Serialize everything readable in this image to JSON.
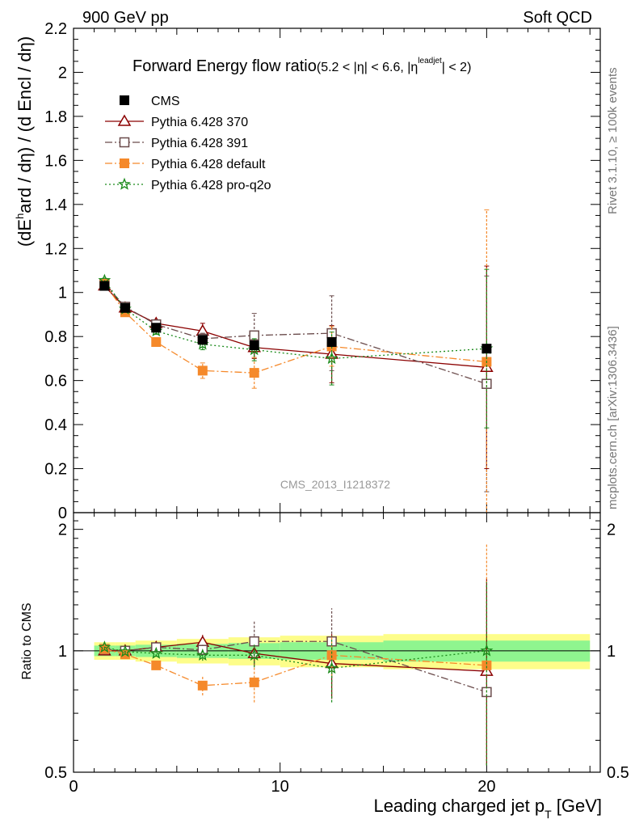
{
  "header": {
    "left": "900 GeV pp",
    "right": "Soft QCD"
  },
  "side_labels": {
    "rivet": "Rivet 3.1.10, ≥ 100k events",
    "mcplots": "mcplots.cern.ch [arXiv:1306.3436]"
  },
  "watermark": "CMS_2013_I1218372",
  "chart_data": {
    "type": "scatter",
    "title": "Forward Energy flow ratio",
    "title_cut": "(5.2 < |η| < 6.6, |η",
    "title_cut_sup": "leadjet",
    "title_cut_end": "| < 2)",
    "ylabel_pre": "(dE",
    "ylabel_sup": "h",
    "ylabel_post": "ard / dη) / (d Encl / dη)",
    "xlabel": "Leading charged jet p",
    "xlabel_sub": "T",
    "xlabel_unit": " [GeV]",
    "ratio_ylabel": "Ratio to CMS",
    "xlim": [
      0,
      25.5
    ],
    "ylim": [
      0,
      2.2
    ],
    "ratio_ylim": [
      0.5,
      2.2
    ],
    "ratio_log": true,
    "x_ticks": [
      "0",
      "10",
      "20"
    ],
    "x_tick_values": [
      0,
      10,
      20
    ],
    "y_ticks": [
      "0",
      "0.2",
      "0.4",
      "0.6",
      "0.8",
      "1",
      "1.2",
      "1.4",
      "1.6",
      "1.8",
      "2",
      "2.2"
    ],
    "y_tick_values": [
      0,
      0.2,
      0.4,
      0.6,
      0.8,
      1.0,
      1.2,
      1.4,
      1.6,
      1.8,
      2.0,
      2.2
    ],
    "ratio_ticks": [
      "0.5",
      "1",
      "2"
    ],
    "ratio_tick_values": [
      0.5,
      1,
      2
    ],
    "legend_position": "top-left",
    "band_x": [
      1,
      2,
      3,
      5,
      7.5,
      10,
      15,
      25
    ],
    "band_inner": [
      0.03,
      0.03,
      0.035,
      0.04,
      0.045,
      0.05,
      0.06
    ],
    "band_outer": [
      0.05,
      0.05,
      0.06,
      0.07,
      0.08,
      0.09,
      0.1
    ],
    "series": [
      {
        "name": "CMS",
        "color": "#000000",
        "marker": "square-filled",
        "dash": "",
        "x": [
          1.5,
          2.5,
          4.0,
          6.25,
          8.75,
          12.5,
          20.0
        ],
        "y": [
          1.03,
          0.93,
          0.84,
          0.785,
          0.76,
          0.775,
          0.745
        ],
        "err": [
          0.0,
          0.0,
          0.0,
          0.0,
          0.0,
          0.0,
          0.0
        ],
        "ratio": [
          1,
          1,
          1,
          1,
          1,
          1,
          1
        ],
        "ratio_err": [
          0,
          0,
          0,
          0,
          0,
          0,
          0
        ]
      },
      {
        "name": "Pythia 6.428 370",
        "color": "#8b0000",
        "marker": "triangle-open",
        "dash": "",
        "x": [
          1.5,
          2.5,
          4.0,
          6.25,
          8.75,
          12.5,
          20.0
        ],
        "y": [
          1.03,
          0.93,
          0.86,
          0.825,
          0.75,
          0.72,
          0.66
        ],
        "err": [
          0.01,
          0.015,
          0.015,
          0.035,
          0.05,
          0.13,
          0.46
        ],
        "ratio": [
          1.0,
          1.0,
          1.02,
          1.05,
          0.985,
          0.93,
          0.89
        ],
        "ratio_err": [
          0.01,
          0.015,
          0.018,
          0.045,
          0.07,
          0.17,
          0.62
        ]
      },
      {
        "name": "Pythia 6.428 391",
        "color": "#6b4c4c",
        "marker": "square-open",
        "dash": "9,3,2,3",
        "x": [
          1.5,
          2.5,
          4.0,
          6.25,
          8.75,
          12.5,
          20.0
        ],
        "y": [
          1.04,
          0.935,
          0.855,
          0.79,
          0.805,
          0.815,
          0.585
        ],
        "err": [
          0.01,
          0.015,
          0.015,
          0.025,
          0.1,
          0.17,
          0.49
        ],
        "ratio": [
          1.01,
          1.0,
          1.02,
          1.005,
          1.055,
          1.055,
          0.79
        ],
        "ratio_err": [
          0.01,
          0.015,
          0.018,
          0.03,
          0.13,
          0.22,
          0.66
        ]
      },
      {
        "name": "Pythia 6.428 default",
        "color": "#f5892a",
        "marker": "square-filled",
        "dash": "9,3,2,3",
        "x": [
          1.5,
          2.5,
          4.0,
          6.25,
          8.75,
          12.5,
          20.0
        ],
        "y": [
          1.04,
          0.91,
          0.775,
          0.645,
          0.635,
          0.755,
          0.685
        ],
        "err": [
          0.01,
          0.015,
          0.015,
          0.035,
          0.07,
          0.09,
          0.69
        ],
        "ratio": [
          1.01,
          0.98,
          0.92,
          0.82,
          0.835,
          0.975,
          0.92
        ],
        "ratio_err": [
          0.01,
          0.015,
          0.018,
          0.045,
          0.09,
          0.11,
          0.92
        ]
      },
      {
        "name": "Pythia 6.428 pro-q2o",
        "color": "#1a8a1a",
        "marker": "star-open",
        "dash": "2,3",
        "x": [
          1.5,
          2.5,
          4.0,
          6.25,
          8.75,
          12.5,
          20.0
        ],
        "y": [
          1.055,
          0.925,
          0.825,
          0.765,
          0.74,
          0.7,
          0.745
        ],
        "err": [
          0.01,
          0.015,
          0.015,
          0.025,
          0.05,
          0.12,
          0.36
        ],
        "ratio": [
          1.02,
          0.995,
          0.985,
          0.975,
          0.975,
          0.905,
          1.0
        ],
        "ratio_err": [
          0.01,
          0.015,
          0.018,
          0.03,
          0.065,
          0.16,
          0.48
        ]
      }
    ]
  }
}
